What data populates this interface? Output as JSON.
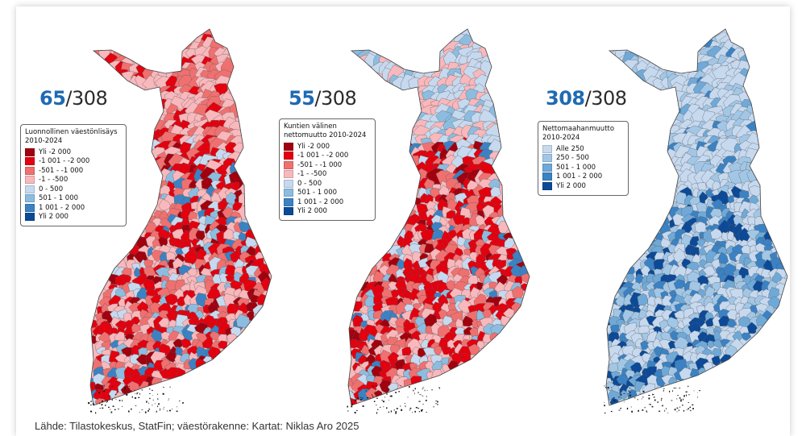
{
  "source": "Lähde: Tilastokeskus, StatFin; väestörakenne: Kartat: Niklas Aro 2025",
  "maps": [
    {
      "count": "65",
      "total": "/308",
      "legend_title": [
        "Luonnollinen väestönlisäys",
        "2010-2024"
      ],
      "classes": [
        {
          "label": "Yli -2 000",
          "color": "#a1000e"
        },
        {
          "label": "-1 001 - -2 000",
          "color": "#e3000f"
        },
        {
          "label": "-501 - -1 000",
          "color": "#f07070"
        },
        {
          "label": "-1 - -500",
          "color": "#f8b8bc"
        },
        {
          "label": "0 - 500",
          "color": "#c6d9ef"
        },
        {
          "label": "501 - 1 000",
          "color": "#8cbde0"
        },
        {
          "label": "1 001 - 2 000",
          "color": "#3b82c4"
        },
        {
          "label": "Yli 2 000",
          "color": "#0c4a98"
        }
      ]
    },
    {
      "count": "55",
      "total": "/308",
      "legend_title": [
        "Kuntien välinen",
        "nettomuutto 2010-2024"
      ],
      "classes": [
        {
          "label": "Yli -2 000",
          "color": "#a1000e"
        },
        {
          "label": "-1 001 - -2 000",
          "color": "#e3000f"
        },
        {
          "label": "-501 - -1 000",
          "color": "#f07070"
        },
        {
          "label": "-1 - -500",
          "color": "#f8b8bc"
        },
        {
          "label": "0 - 500",
          "color": "#c6d9ef"
        },
        {
          "label": "501 - 1 000",
          "color": "#8cbde0"
        },
        {
          "label": "1 001 - 2 000",
          "color": "#3b82c4"
        },
        {
          "label": "Yli 2 000",
          "color": "#0c4a98"
        }
      ]
    },
    {
      "count": "308",
      "total": "/308",
      "legend_title": [
        "Nettomaahanmuutto",
        "2010-2024"
      ],
      "classes": [
        {
          "label": "Alle 250",
          "color": "#c6d9ef"
        },
        {
          "label": "250 - 500",
          "color": "#a2c7e6"
        },
        {
          "label": "501 - 1 000",
          "color": "#6fa9d8"
        },
        {
          "label": "1 001 - 2 000",
          "color": "#3b82c4"
        },
        {
          "label": "Yli 2 000",
          "color": "#0c4a98"
        }
      ]
    }
  ]
}
